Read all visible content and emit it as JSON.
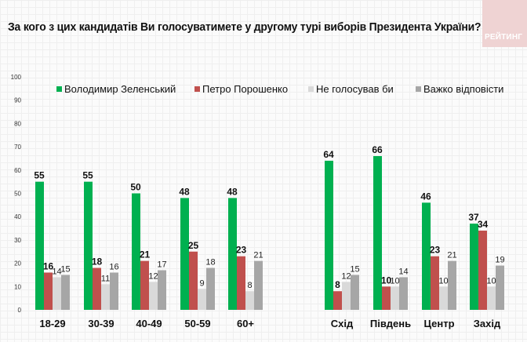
{
  "title": "За кого з цих кандидатів Ви голосуватимете у другому турі виборів Президента України?",
  "logo_text": "РЕЙТИНГ",
  "chart_data": {
    "type": "bar",
    "title": "За кого з цих кандидатів Ви голосуватимете у другому турі виборів Президента України?",
    "xlabel": "",
    "ylabel": "",
    "ylim": [
      0,
      100
    ],
    "yticks": [
      "0",
      "10",
      "20",
      "30",
      "40",
      "50",
      "60",
      "70",
      "80",
      "90",
      "100"
    ],
    "grid": true,
    "legend_position": "top",
    "category_groups": [
      [
        "18-29",
        "30-39",
        "40-49",
        "50-59",
        "60+"
      ],
      [
        "Схід",
        "Південь",
        "Центр",
        "Захід"
      ]
    ],
    "categories": [
      "18-29",
      "30-39",
      "40-49",
      "50-59",
      "60+",
      "Схід",
      "Південь",
      "Центр",
      "Захід"
    ],
    "series": [
      {
        "name": "Володимир Зеленський",
        "color": "#00b050",
        "values": [
          55,
          55,
          50,
          48,
          48,
          64,
          66,
          46,
          37
        ]
      },
      {
        "name": "Петро Порошенко",
        "color": "#c0504d",
        "values": [
          16,
          18,
          21,
          25,
          23,
          8,
          10,
          23,
          34
        ]
      },
      {
        "name": "Не голосував би",
        "color": "#d9d9d9",
        "values": [
          14,
          11,
          12,
          9,
          8,
          12,
          10,
          10,
          10
        ]
      },
      {
        "name": "Важко відповісти",
        "color": "#a6a6a6",
        "values": [
          15,
          16,
          17,
          18,
          21,
          15,
          14,
          21,
          19
        ]
      }
    ]
  }
}
